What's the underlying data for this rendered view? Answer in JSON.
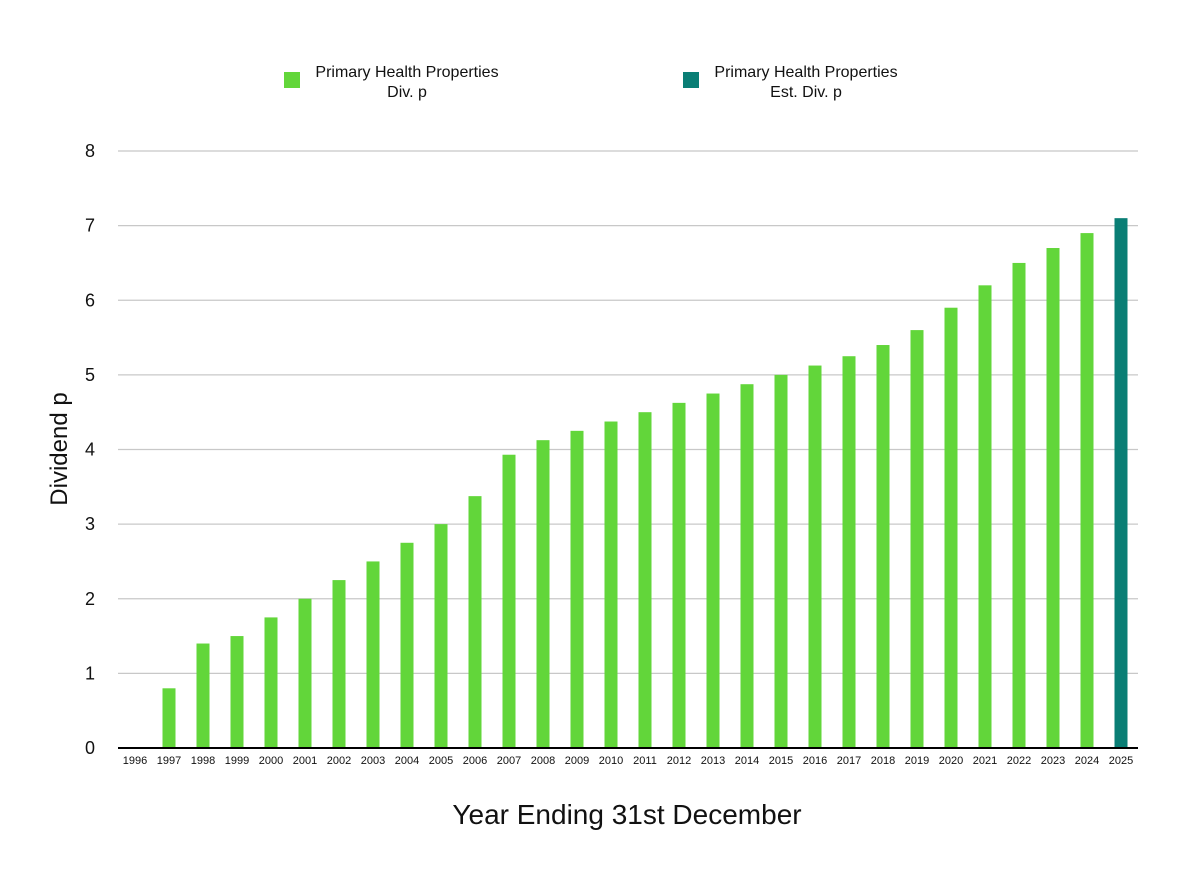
{
  "chart_data": {
    "type": "bar",
    "title": "",
    "xlabel": "Year Ending 31st December",
    "ylabel": "Dividend p",
    "ylim": [
      0,
      8
    ],
    "yticks": [
      "0",
      "1",
      "2",
      "3",
      "4",
      "5",
      "6",
      "7",
      "8"
    ],
    "grid": true,
    "legend_position": "top",
    "categories": [
      "1996",
      "1997",
      "1998",
      "1999",
      "2000",
      "2001",
      "2002",
      "2003",
      "2004",
      "2005",
      "2006",
      "2007",
      "2008",
      "2009",
      "2010",
      "2011",
      "2012",
      "2013",
      "2014",
      "2015",
      "2016",
      "2017",
      "2018",
      "2019",
      "2020",
      "2021",
      "2022",
      "2023",
      "2024",
      "2025"
    ],
    "series": [
      {
        "name_line1": "Primary Health Properties",
        "name_line2": "Div. p",
        "color": "#62d63a",
        "values": [
          null,
          0.8,
          1.4,
          1.5,
          1.75,
          2.0,
          2.25,
          2.5,
          2.75,
          3.0,
          3.375,
          3.93,
          4.125,
          4.25,
          4.375,
          4.5,
          4.625,
          4.75,
          4.875,
          5.0,
          5.125,
          5.25,
          5.4,
          5.6,
          5.9,
          6.2,
          6.5,
          6.7,
          6.9,
          null
        ]
      },
      {
        "name_line1": "Primary Health Properties",
        "name_line2": "Est. Div. p",
        "color": "#0a7e75",
        "values": [
          null,
          null,
          null,
          null,
          null,
          null,
          null,
          null,
          null,
          null,
          null,
          null,
          null,
          null,
          null,
          null,
          null,
          null,
          null,
          null,
          null,
          null,
          null,
          null,
          null,
          null,
          null,
          null,
          null,
          7.1
        ]
      }
    ]
  }
}
